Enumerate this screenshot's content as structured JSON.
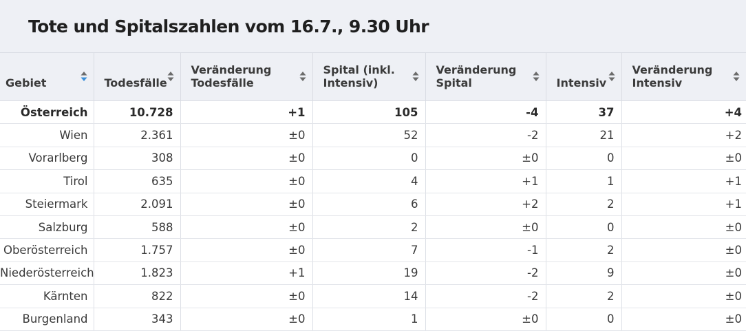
{
  "title": "Tote und Spitalszahlen vom 16.7., 9.30 Uhr",
  "colors": {
    "header_bg": "#eef0f5",
    "sort_active": "#3b8fd9",
    "sort_inactive": "#6b6b6b"
  },
  "columns": [
    {
      "label": "Gebiet",
      "sort": "active"
    },
    {
      "label": "Todesfälle",
      "sort": "inactive"
    },
    {
      "label": "Veränderung Todesfälle",
      "sort": "inactive"
    },
    {
      "label": "Spital (inkl. Intensiv)",
      "sort": "inactive"
    },
    {
      "label": "Veränderung Spital",
      "sort": "inactive"
    },
    {
      "label": "Intensiv",
      "sort": "inactive"
    },
    {
      "label": "Veränderung Intensiv",
      "sort": "inactive"
    }
  ],
  "rows": [
    [
      "Österreich",
      "10.728",
      "+1",
      "105",
      "-4",
      "37",
      "+4"
    ],
    [
      "Wien",
      "2.361",
      "±0",
      "52",
      "-2",
      "21",
      "+2"
    ],
    [
      "Vorarlberg",
      "308",
      "±0",
      "0",
      "±0",
      "0",
      "±0"
    ],
    [
      "Tirol",
      "635",
      "±0",
      "4",
      "+1",
      "1",
      "+1"
    ],
    [
      "Steiermark",
      "2.091",
      "±0",
      "6",
      "+2",
      "2",
      "+1"
    ],
    [
      "Salzburg",
      "588",
      "±0",
      "2",
      "±0",
      "0",
      "±0"
    ],
    [
      "Oberösterreich",
      "1.757",
      "±0",
      "7",
      "-1",
      "2",
      "±0"
    ],
    [
      "Niederösterreich",
      "1.823",
      "+1",
      "19",
      "-2",
      "9",
      "±0"
    ],
    [
      "Kärnten",
      "822",
      "±0",
      "14",
      "-2",
      "2",
      "±0"
    ],
    [
      "Burgenland",
      "343",
      "±0",
      "1",
      "±0",
      "0",
      "±0"
    ]
  ]
}
